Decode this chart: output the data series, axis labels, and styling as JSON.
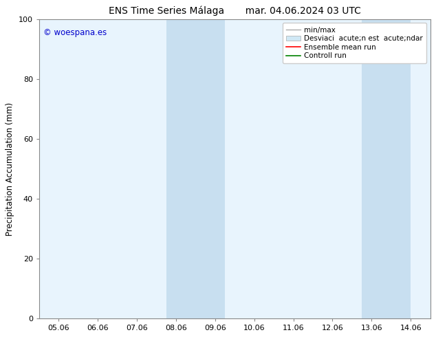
{
  "title": "ENS Time Series Málaga       mar. 04.06.2024 03 UTC",
  "ylabel": "Precipitation Accumulation (mm)",
  "xlabel": "",
  "ylim": [
    0,
    100
  ],
  "yticks": [
    0,
    20,
    40,
    60,
    80,
    100
  ],
  "x_tick_labels": [
    "05.06",
    "06.06",
    "07.06",
    "08.06",
    "09.06",
    "10.06",
    "11.06",
    "12.06",
    "13.06",
    "14.06"
  ],
  "x_tick_positions": [
    0,
    1,
    2,
    3,
    4,
    5,
    6,
    7,
    8,
    9
  ],
  "xlim": [
    -0.5,
    9.5
  ],
  "plot_bg_color": "#e8f4fd",
  "shaded_regions": [
    {
      "x_start": 2.75,
      "x_end": 4.25,
      "color": "#c8dff0",
      "alpha": 1.0
    },
    {
      "x_start": 7.75,
      "x_end": 9.0,
      "color": "#c8dff0",
      "alpha": 1.0
    }
  ],
  "watermark_text": "© woespana.es",
  "watermark_color": "#0000cc",
  "background_color": "#ffffff",
  "legend_items": [
    {
      "label": "min/max",
      "color": "#aaaaaa",
      "lw": 1.0,
      "linestyle": "-",
      "type": "line"
    },
    {
      "label": "Desviaci  acute;n est  acute;ndar",
      "color": "#d0e8f5",
      "lw": 6,
      "linestyle": "-",
      "type": "patch"
    },
    {
      "label": "Ensemble mean run",
      "color": "#ff0000",
      "lw": 1.2,
      "linestyle": "-",
      "type": "line"
    },
    {
      "label": "Controll run",
      "color": "#008000",
      "lw": 1.2,
      "linestyle": "-",
      "type": "line"
    }
  ],
  "title_fontsize": 10,
  "tick_fontsize": 8,
  "ylabel_fontsize": 8.5,
  "watermark_fontsize": 8.5,
  "legend_fontsize": 7.5
}
